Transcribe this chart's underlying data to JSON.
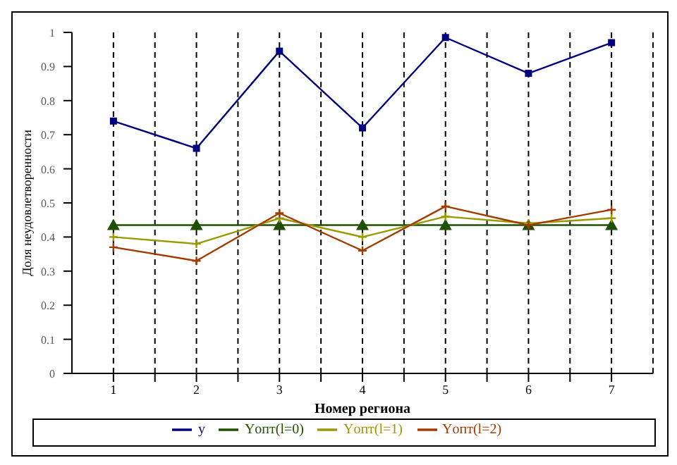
{
  "chart_data": {
    "type": "line",
    "xlabel": "Номер региона",
    "ylabel": "Доля неудовлетворенности",
    "x": [
      1,
      2,
      3,
      4,
      5,
      6,
      7
    ],
    "series": [
      {
        "name": "y",
        "color": "#000080",
        "marker": "square",
        "values": [
          0.74,
          0.66,
          0.945,
          0.72,
          0.985,
          0.88,
          0.97
        ]
      },
      {
        "name": "Yопт(l=0)",
        "color": "#1f4f00",
        "marker": "triangle",
        "values": [
          0.435,
          0.435,
          0.435,
          0.435,
          0.435,
          0.435,
          0.435
        ]
      },
      {
        "name": "Yопт(l=1)",
        "color": "#999900",
        "marker": "cross",
        "values": [
          0.4,
          0.38,
          0.455,
          0.4,
          0.46,
          0.44,
          0.455
        ]
      },
      {
        "name": "Yопт(l=2)",
        "color": "#a33a00",
        "marker": "cross",
        "values": [
          0.37,
          0.33,
          0.47,
          0.36,
          0.49,
          0.435,
          0.48
        ]
      }
    ],
    "xlim": [
      0.5,
      7.5
    ],
    "xticks": [
      1,
      {
        "value": 1.5,
        "label": null
      },
      2,
      {
        "value": 2.5,
        "label": null
      },
      3,
      {
        "value": 3.5,
        "label": null
      },
      4,
      {
        "value": 4.5,
        "label": null
      },
      5,
      {
        "value": 5.5,
        "label": null
      },
      6,
      {
        "value": 6.5,
        "label": null
      },
      7
    ],
    "ylim": [
      0,
      1
    ],
    "yticks": [
      0,
      0.1,
      0.2,
      0.3,
      0.4,
      0.5,
      0.6,
      0.7,
      0.8,
      0.9,
      1
    ],
    "grid": "x",
    "legend": "bottom"
  }
}
